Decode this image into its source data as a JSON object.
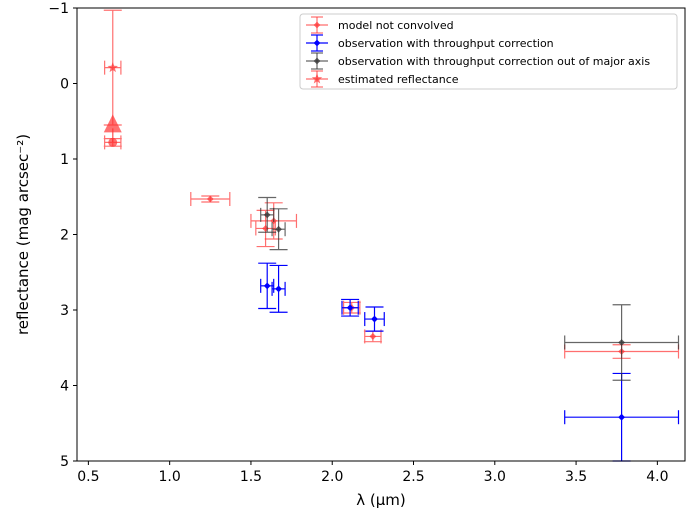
{
  "chart_data": {
    "type": "scatter",
    "xlabel": "λ (μm)",
    "ylabel": "reflectance (mag arcsec⁻²)",
    "xlim": [
      0.43,
      4.17
    ],
    "ylim": [
      -1,
      5
    ],
    "y_inverted": true,
    "grid": false,
    "legend_position": "top-right",
    "x_ticks": [
      {
        "value": 0.5,
        "label": "0.5"
      },
      {
        "value": 1.0,
        "label": "1.0"
      },
      {
        "value": 1.5,
        "label": "1.5"
      },
      {
        "value": 2.0,
        "label": "2.0"
      },
      {
        "value": 2.5,
        "label": "2.5"
      },
      {
        "value": 3.0,
        "label": "3.0"
      },
      {
        "value": 3.5,
        "label": "3.5"
      },
      {
        "value": 4.0,
        "label": "4.0"
      }
    ],
    "y_ticks": [
      {
        "value": -1,
        "label": "−1"
      },
      {
        "value": 0,
        "label": "0"
      },
      {
        "value": 1,
        "label": "1"
      },
      {
        "value": 2,
        "label": "2"
      },
      {
        "value": 3,
        "label": "3"
      },
      {
        "value": 4,
        "label": "4"
      },
      {
        "value": 5,
        "label": "5"
      }
    ],
    "series": [
      {
        "name": "model not convolved",
        "color": "#ff3333",
        "marker": "diamond",
        "points": [
          {
            "x": 1.25,
            "y": 1.53,
            "xerr": 0.12,
            "yerr": 0.04
          },
          {
            "x": 1.59,
            "y": 1.92,
            "xerr": 0.06,
            "yerr": 0.24
          },
          {
            "x": 1.64,
            "y": 1.82,
            "xerr": 0.14,
            "yerr": 0.24
          },
          {
            "x": 2.12,
            "y": 2.97,
            "xerr": 0.05,
            "yerr": 0.07
          },
          {
            "x": 2.25,
            "y": 3.35,
            "xerr": 0.05,
            "yerr": 0.07
          },
          {
            "x": 3.78,
            "y": 3.55,
            "xerr": 0.35,
            "yerr": 0.09
          }
        ]
      },
      {
        "name": "observation with throughput correction",
        "color": "#0000ff",
        "marker": "diamond",
        "points": [
          {
            "x": 1.6,
            "y": 2.68,
            "xerr": 0.04,
            "yerr": 0.3
          },
          {
            "x": 1.67,
            "y": 2.72,
            "xerr": 0.04,
            "yerr": 0.31
          },
          {
            "x": 2.11,
            "y": 2.97,
            "xerr": 0.05,
            "yerr": 0.11
          },
          {
            "x": 2.26,
            "y": 3.12,
            "xerr": 0.06,
            "yerr": 0.16
          },
          {
            "x": 3.78,
            "y": 4.42,
            "xerr": 0.35,
            "yerr": 0.58
          }
        ]
      },
      {
        "name": "observation with throughput correction out of major axis",
        "color": "#333333",
        "marker": "diamond",
        "points": [
          {
            "x": 1.6,
            "y": 1.74,
            "xerr": 0.04,
            "yerr": 0.23
          },
          {
            "x": 1.67,
            "y": 1.93,
            "xerr": 0.04,
            "yerr": 0.27
          },
          {
            "x": 3.78,
            "y": 3.43,
            "xerr": 0.35,
            "yerr": 0.5
          }
        ]
      },
      {
        "name": "estimated reflectance",
        "color": "#ff3333",
        "marker": "star",
        "points": [
          {
            "x": 0.65,
            "y": -0.21,
            "xerr": 0.05,
            "yerr": 0.76
          }
        ]
      }
    ],
    "extra_marks": [
      {
        "type": "point",
        "x": 0.65,
        "y": 0.78,
        "xerr": 0.05,
        "yerr": 0.05,
        "color": "#ff3333",
        "marker": "circle"
      },
      {
        "type": "upper-limit-arrow",
        "x": 0.65,
        "y": 0.78,
        "color": "#ff3333"
      }
    ]
  }
}
